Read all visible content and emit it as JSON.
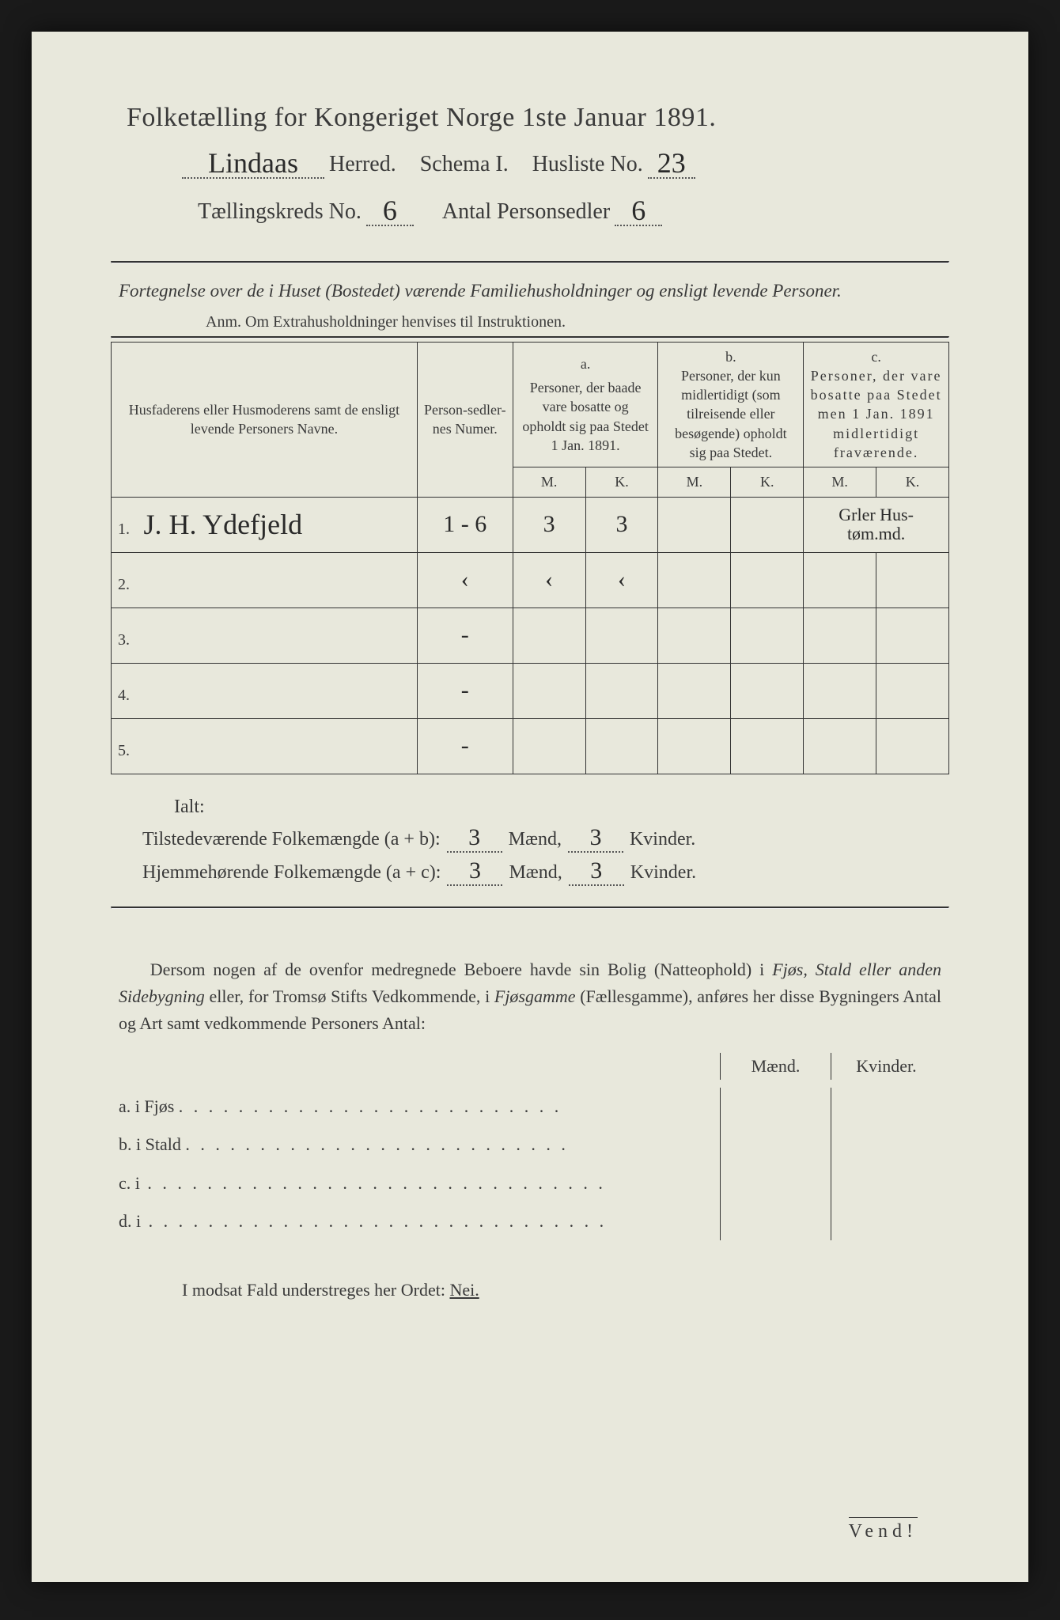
{
  "title": "Folketælling for Kongeriget Norge 1ste Januar 1891.",
  "herred_handwritten": "Lindaas",
  "herred_label": "Herred.",
  "schema_label": "Schema I.",
  "husliste_label": "Husliste No.",
  "husliste_no": "23",
  "kreds_label": "Tællingskreds No.",
  "kreds_no": "6",
  "antal_label": "Antal Personsedler",
  "antal_val": "6",
  "intro": "Fortegnelse over de i Huset (Bostedet) værende Familiehusholdninger og ensligt levende Personer.",
  "anm": "Anm. Om Extrahusholdninger henvises til Instruktionen.",
  "head_names": "Husfaderens eller Husmoderens samt de ensligt levende Personers Navne.",
  "head_num": "Person-sedler-nes Numer.",
  "head_a_top": "a.",
  "head_a": "Personer, der baade vare bosatte og opholdt sig paa Stedet 1 Jan. 1891.",
  "head_b_top": "b.",
  "head_b": "Personer, der kun midlertidigt (som tilreisende eller besøgende) opholdt sig paa Stedet.",
  "head_c_top": "c.",
  "head_c": "Personer, der vare bosatte paa Stedet men 1 Jan. 1891 midlertidigt fraværende.",
  "mk_m": "M.",
  "mk_k": "K.",
  "rows": [
    {
      "n": "1.",
      "name": "J. H. Ydefjeld",
      "num": "1 - 6",
      "am": "3",
      "ak": "3",
      "bm": "",
      "bk": "",
      "cm": "Grler Hus-",
      "ck": "tøm.md."
    },
    {
      "n": "2.",
      "name": "",
      "num": "‹",
      "am": "‹",
      "ak": "‹",
      "bm": "",
      "bk": "",
      "cm": "",
      "ck": ""
    },
    {
      "n": "3.",
      "name": "",
      "num": "-",
      "am": "",
      "ak": "",
      "bm": "",
      "bk": "",
      "cm": "",
      "ck": ""
    },
    {
      "n": "4.",
      "name": "",
      "num": "-",
      "am": "",
      "ak": "",
      "bm": "",
      "bk": "",
      "cm": "",
      "ck": ""
    },
    {
      "n": "5.",
      "name": "",
      "num": "-",
      "am": "",
      "ak": "",
      "bm": "",
      "bk": "",
      "cm": "",
      "ck": ""
    }
  ],
  "ialt": "Ialt:",
  "sum1_label": "Tilstedeværende Folkemængde (a + b):",
  "sum2_label": "Hjemmehørende Folkemængde (a + c):",
  "maend": "Mænd,",
  "kvinder": "Kvinder.",
  "sum1_m": "3",
  "sum1_k": "3",
  "sum2_m": "3",
  "sum2_k": "3",
  "para": "Dersom nogen af de ovenfor medregnede Beboere havde sin Bolig (Natteophold) i Fjøs, Stald eller anden Sidebygning eller, for Tromsø Stifts Vedkommende, i Fjøsgamme (Fællesgamme), anføres her disse Bygningers Antal og Art samt vedkommende Personers Antal:",
  "side_maend": "Mænd.",
  "side_kvinder": "Kvinder.",
  "side_a": "a.  i      Fjøs",
  "side_b": "b.  i      Stald",
  "side_c": "c.  i",
  "side_d": "d.  i",
  "nei_line": "I modsat Fald understreges her Ordet:",
  "nei": "Nei.",
  "vend": "Vend!"
}
